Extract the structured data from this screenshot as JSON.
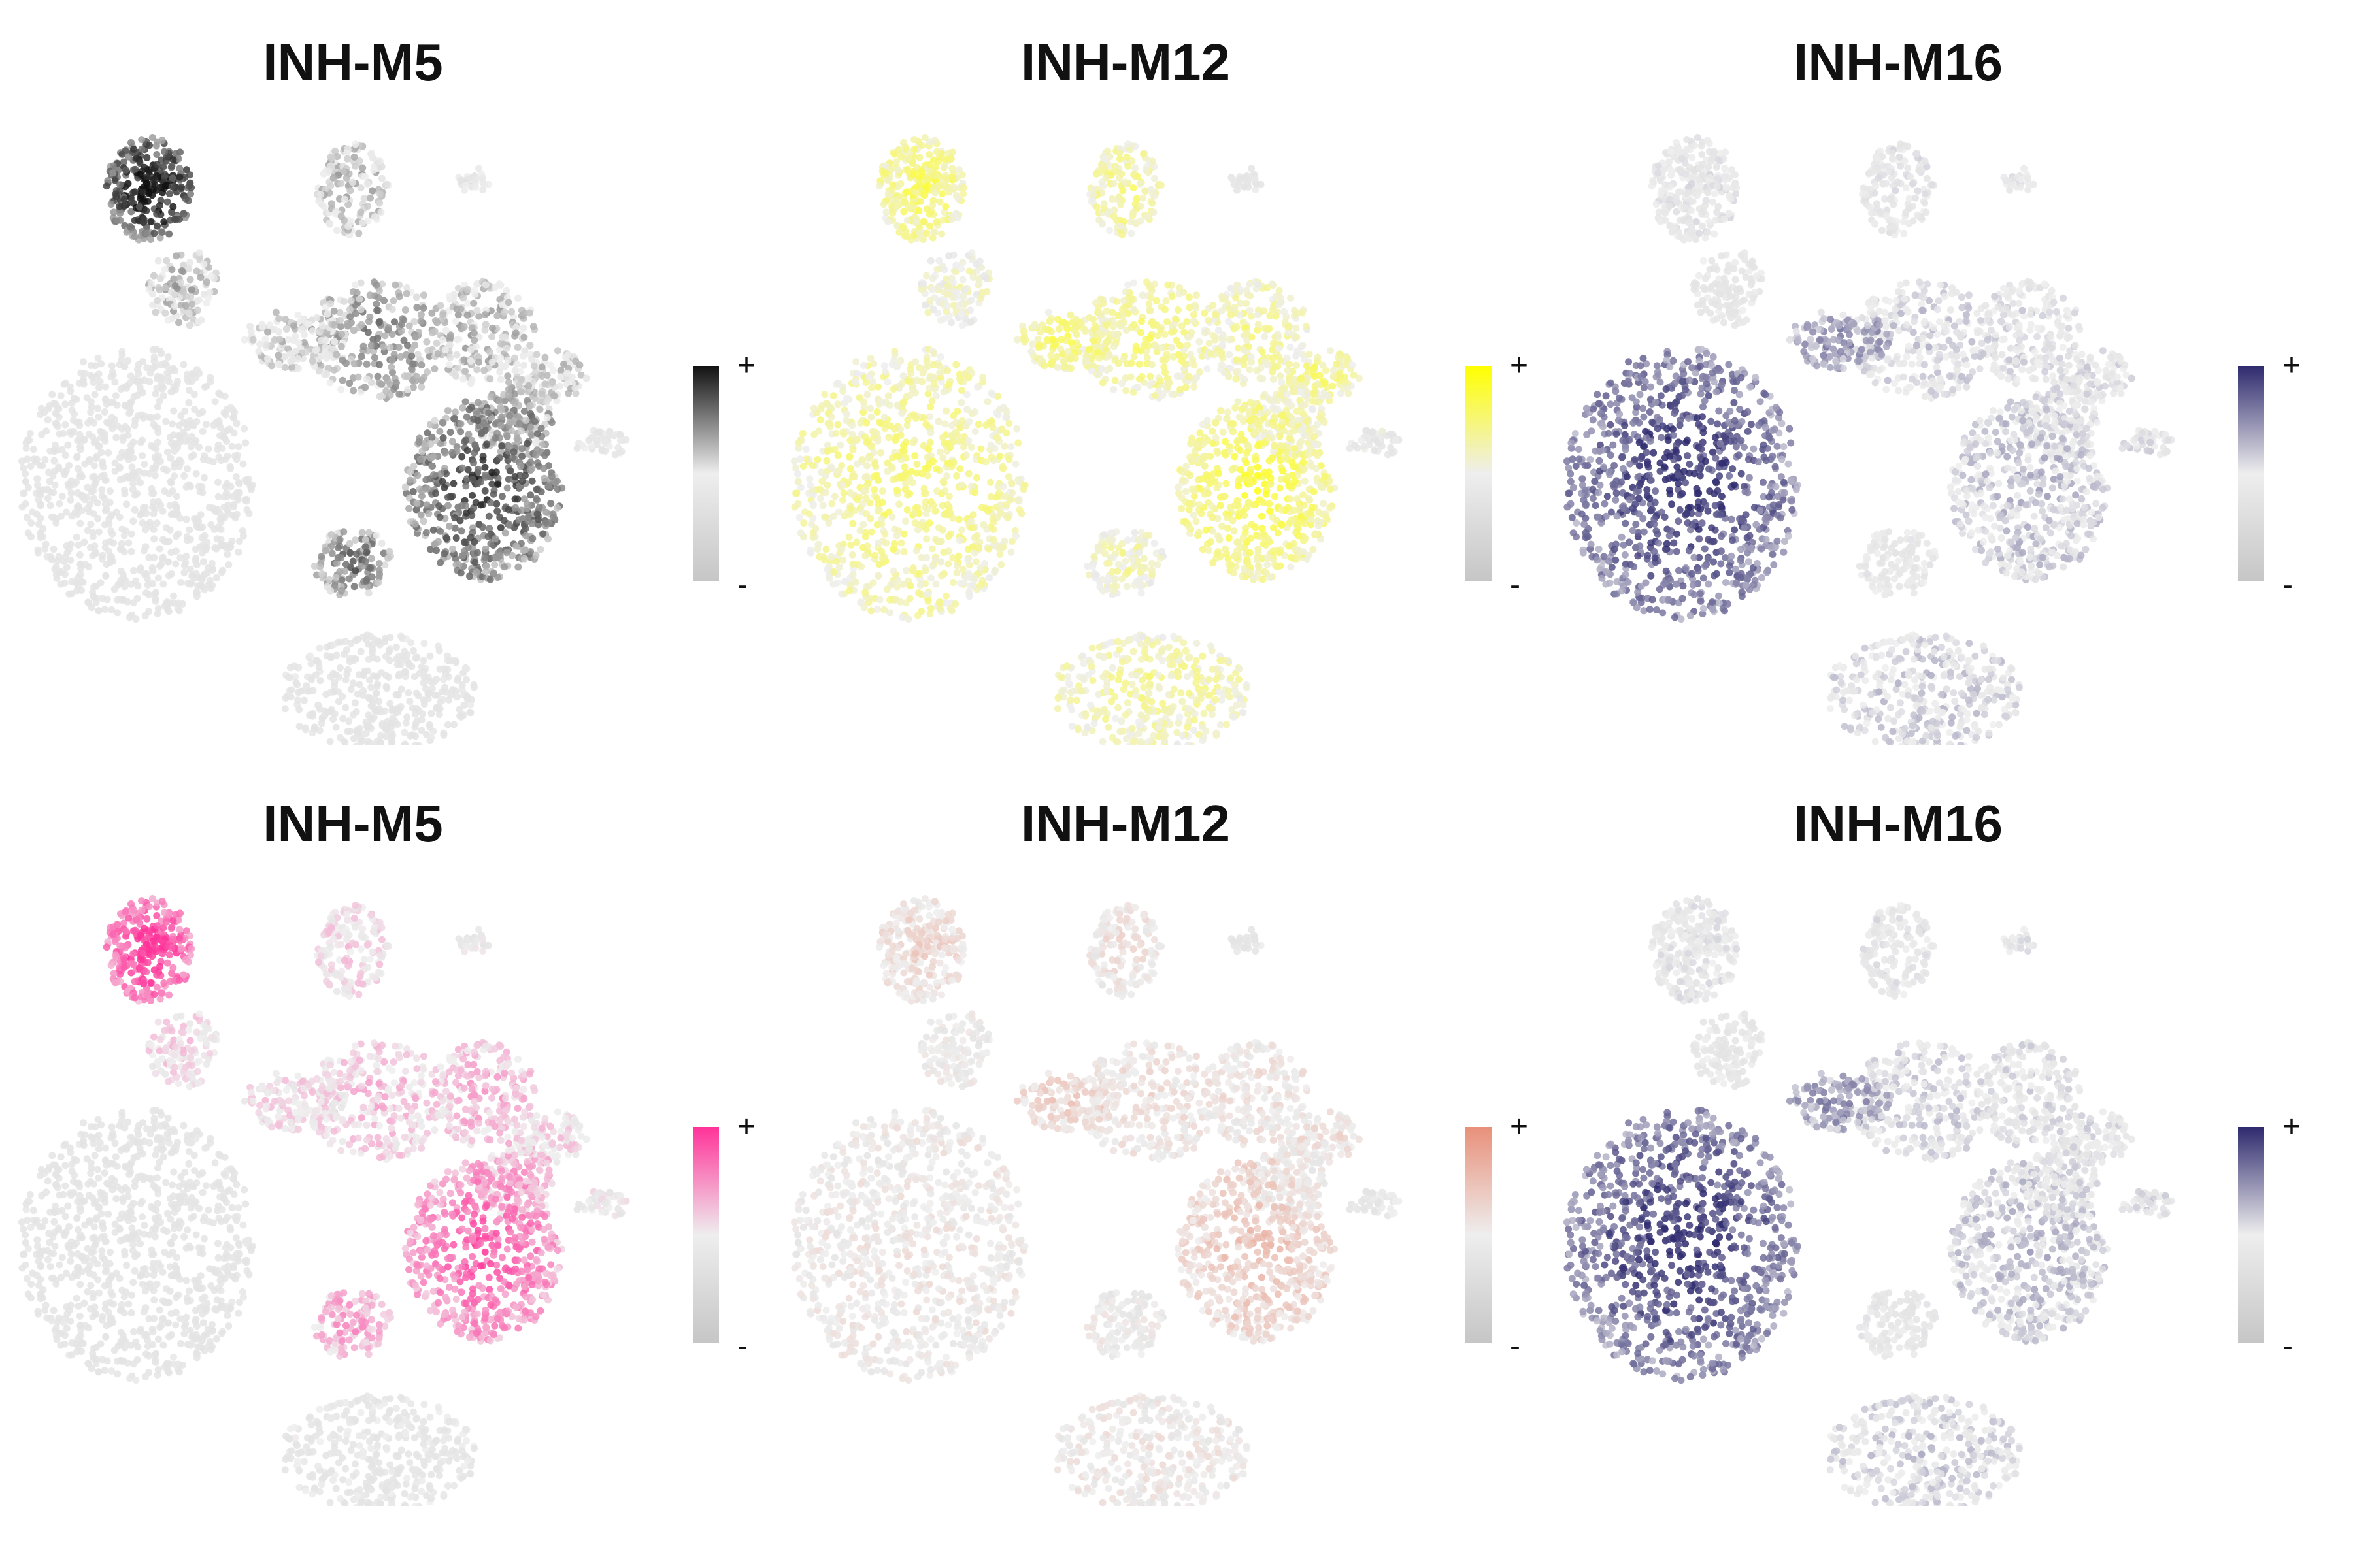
{
  "chart_data": [
    {
      "type": "scatter",
      "title": "INH-M5",
      "legend": {
        "high_label": "+",
        "low_label": "-",
        "high_color": "#111111",
        "mid_color": "#eeeeee",
        "low_color": "#c6c6c6"
      },
      "cluster_intensity": {
        "c1": 1.0,
        "c2": 0.6,
        "c3": 0.6,
        "c4": 0.45,
        "c5": 0.7,
        "c6": 0.55,
        "c7": 0.15,
        "c8": 0.6,
        "c9": 0.7,
        "c10": 0.85,
        "c11": 0.55,
        "c12": 0.4,
        "c13": 0.75,
        "c14": 0.25
      }
    },
    {
      "type": "scatter",
      "title": "INH-M12",
      "legend": {
        "high_label": "+",
        "low_label": "-",
        "high_color": "#ffff00",
        "mid_color": "#eeeeee",
        "low_color": "#c6c6c6"
      },
      "cluster_intensity": {
        "c1": 0.75,
        "c2": 0.7,
        "c3": 0.55,
        "c4": 0.3,
        "c5": 0.7,
        "c6": 0.75,
        "c7": 0.7,
        "c8": 0.65,
        "c9": 0.6,
        "c10": 0.8,
        "c11": 0.7,
        "c12": 0.4,
        "c13": 0.6,
        "c14": 0.65
      }
    },
    {
      "type": "scatter",
      "title": "INH-M16",
      "legend": {
        "high_label": "+",
        "low_label": "-",
        "high_color": "#2e2a6e",
        "mid_color": "#eeeeee",
        "low_color": "#c6c6c6"
      },
      "cluster_intensity": {
        "c1": 0.45,
        "c2": 0.45,
        "c3": 0.35,
        "c4": 0.45,
        "c5": 0.55,
        "c6": 0.75,
        "c7": 0.95,
        "c8": 0.5,
        "c9": 0.5,
        "c10": 0.6,
        "c11": 0.5,
        "c12": 0.5,
        "c13": 0.4,
        "c14": 0.55
      }
    },
    {
      "type": "scatter",
      "title": "INH-M5",
      "legend": {
        "high_label": "+",
        "low_label": "-",
        "high_color": "#ff3399",
        "mid_color": "#eeeeee",
        "low_color": "#c6c6c6"
      },
      "cluster_intensity": {
        "c1": 1.0,
        "c2": 0.55,
        "c3": 0.55,
        "c4": 0.4,
        "c5": 0.6,
        "c6": 0.55,
        "c7": 0.2,
        "c8": 0.65,
        "c9": 0.7,
        "c10": 0.85,
        "c11": 0.55,
        "c12": 0.45,
        "c13": 0.7,
        "c14": 0.35
      }
    },
    {
      "type": "scatter",
      "title": "INH-M12",
      "legend": {
        "high_label": "+",
        "low_label": "-",
        "high_color": "#e8907a",
        "mid_color": "#eeeeee",
        "low_color": "#c6c6c6"
      },
      "cluster_intensity": {
        "c1": 0.6,
        "c2": 0.55,
        "c3": 0.45,
        "c4": 0.3,
        "c5": 0.55,
        "c6": 0.65,
        "c7": 0.5,
        "c8": 0.55,
        "c9": 0.5,
        "c10": 0.7,
        "c11": 0.55,
        "c12": 0.35,
        "c13": 0.45,
        "c14": 0.5
      }
    },
    {
      "type": "scatter",
      "title": "INH-M16",
      "legend": {
        "high_label": "+",
        "low_label": "-",
        "high_color": "#2e2a6e",
        "mid_color": "#eeeeee",
        "low_color": "#c6c6c6"
      },
      "cluster_intensity": {
        "c1": 0.45,
        "c2": 0.45,
        "c3": 0.35,
        "c4": 0.45,
        "c5": 0.55,
        "c6": 0.75,
        "c7": 0.95,
        "c8": 0.5,
        "c9": 0.5,
        "c10": 0.6,
        "c11": 0.5,
        "c12": 0.5,
        "c13": 0.4,
        "c14": 0.55
      }
    }
  ]
}
